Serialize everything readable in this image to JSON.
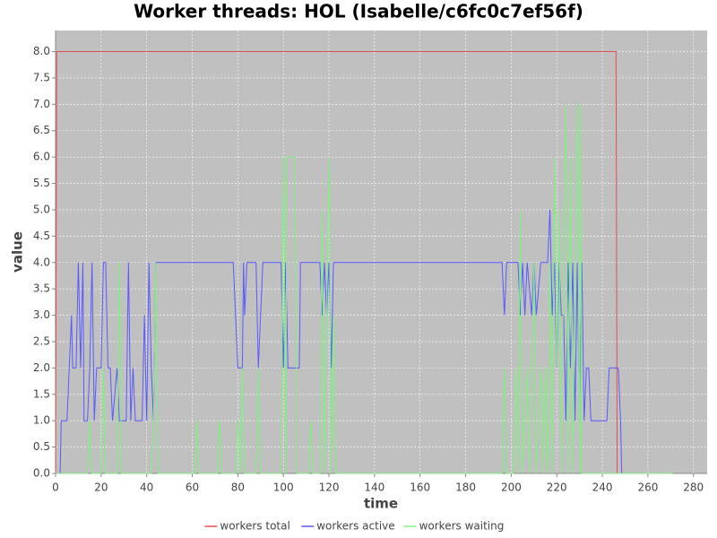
{
  "chart_data": {
    "type": "line",
    "title": "Worker threads: HOL (Isabelle/c6fc0c7ef56f)",
    "x_label": "time",
    "y_label": "value",
    "xlim": [
      0,
      286
    ],
    "ylim": [
      0,
      8.4
    ],
    "xticks": [
      0,
      20,
      40,
      60,
      80,
      100,
      120,
      140,
      160,
      180,
      200,
      220,
      240,
      260,
      280
    ],
    "yticks": [
      {
        "value": 0,
        "label": "0.0"
      },
      0.5,
      {
        "value": 1,
        "label": "1.0"
      },
      1.5,
      {
        "value": 2,
        "label": "2.0"
      },
      2.5,
      {
        "value": 3,
        "label": "3.0"
      },
      3.5,
      {
        "value": 4,
        "label": "4.0"
      },
      4.5,
      {
        "value": 5,
        "label": "5.0"
      },
      5.5,
      {
        "value": 6,
        "label": "6.0"
      },
      6.5,
      {
        "value": 7,
        "label": "7.0"
      },
      7.5,
      {
        "value": 8,
        "label": "8.0"
      }
    ],
    "grid": true,
    "legend": "bottom",
    "series": [
      {
        "name": "workers total",
        "color": "#e05050",
        "x": [
          0,
          0.5,
          246,
          246.5,
          271
        ],
        "values": [
          0,
          8,
          8,
          0,
          0
        ]
      },
      {
        "name": "workers active",
        "color": "#5a5aff",
        "x": [
          0,
          2,
          2.5,
          5,
          6,
          7,
          7.5,
          9,
          10,
          11,
          12,
          12.5,
          14,
          15,
          16,
          17,
          18,
          20,
          21,
          22,
          23,
          24,
          25,
          27,
          28,
          31,
          32,
          33,
          34,
          35,
          38,
          39,
          40,
          41,
          42,
          43,
          44,
          78,
          79,
          80,
          82,
          82.5,
          83,
          84,
          88,
          89,
          90,
          91,
          99,
          100,
          101,
          102,
          107,
          107.5,
          116,
          117,
          118,
          119,
          120,
          121,
          122,
          124,
          196,
          197,
          198,
          203,
          204,
          205,
          206,
          207,
          209,
          210,
          211,
          213,
          216,
          217,
          218,
          219,
          220,
          221,
          222,
          223,
          224,
          225,
          226,
          227,
          228,
          229,
          230,
          231,
          232,
          233,
          234,
          235,
          242,
          243,
          247,
          248,
          248.5,
          271
        ],
        "values": [
          0,
          0,
          1,
          1,
          2,
          3,
          2,
          2,
          4,
          2,
          4,
          1,
          1,
          2,
          4,
          1,
          2,
          2,
          4,
          4,
          2,
          2,
          1,
          2,
          1,
          1,
          4,
          1,
          2,
          1,
          1,
          3,
          1,
          4,
          2,
          1,
          4,
          4,
          3,
          2,
          2,
          4,
          3,
          4,
          4,
          2,
          3,
          4,
          4,
          2,
          4,
          2,
          2,
          4,
          4,
          3,
          4,
          3,
          4,
          2,
          4,
          4,
          4,
          3,
          4,
          4,
          3,
          4,
          3,
          4,
          3,
          4,
          3,
          4,
          4,
          5,
          3,
          4,
          2,
          4,
          3,
          3,
          1,
          4,
          2,
          4,
          1,
          4,
          1,
          4,
          1,
          2,
          2,
          1,
          1,
          2,
          2,
          1,
          0,
          0
        ]
      },
      {
        "name": "workers waiting",
        "color": "#80f080",
        "x": [
          0,
          14,
          15,
          16,
          20,
          21,
          22,
          27,
          28,
          29,
          42,
          43,
          44,
          45,
          61,
          62,
          63,
          71,
          72,
          73,
          79,
          80,
          81,
          82,
          83,
          88,
          89,
          90,
          99,
          100,
          101,
          101.5,
          105,
          106,
          111,
          112,
          113,
          116,
          117,
          118,
          119,
          120,
          121,
          122,
          123,
          196,
          197,
          198,
          201,
          202,
          203,
          204,
          205,
          207,
          208,
          210,
          211,
          213,
          214,
          215,
          216,
          217,
          218,
          219,
          220,
          221,
          222,
          223,
          224,
          225,
          226,
          227,
          228,
          229,
          230,
          230.5,
          231,
          271
        ],
        "values": [
          0,
          0,
          1,
          0,
          0,
          2,
          0,
          0,
          4,
          0,
          0,
          1,
          4,
          0,
          0,
          1,
          0,
          0,
          1,
          0,
          0,
          1,
          0,
          2,
          0,
          0,
          2,
          0,
          0,
          6,
          0,
          6,
          6,
          0,
          0,
          1,
          0,
          0,
          5,
          0,
          3,
          6,
          0,
          3,
          0,
          0,
          2,
          0,
          0,
          2,
          0,
          5,
          0,
          2,
          0,
          4,
          0,
          2,
          0,
          2,
          0,
          4,
          0,
          6,
          2,
          5,
          0,
          4,
          7,
          0,
          6,
          0,
          4,
          7,
          0,
          7,
          0,
          0
        ]
      }
    ]
  }
}
